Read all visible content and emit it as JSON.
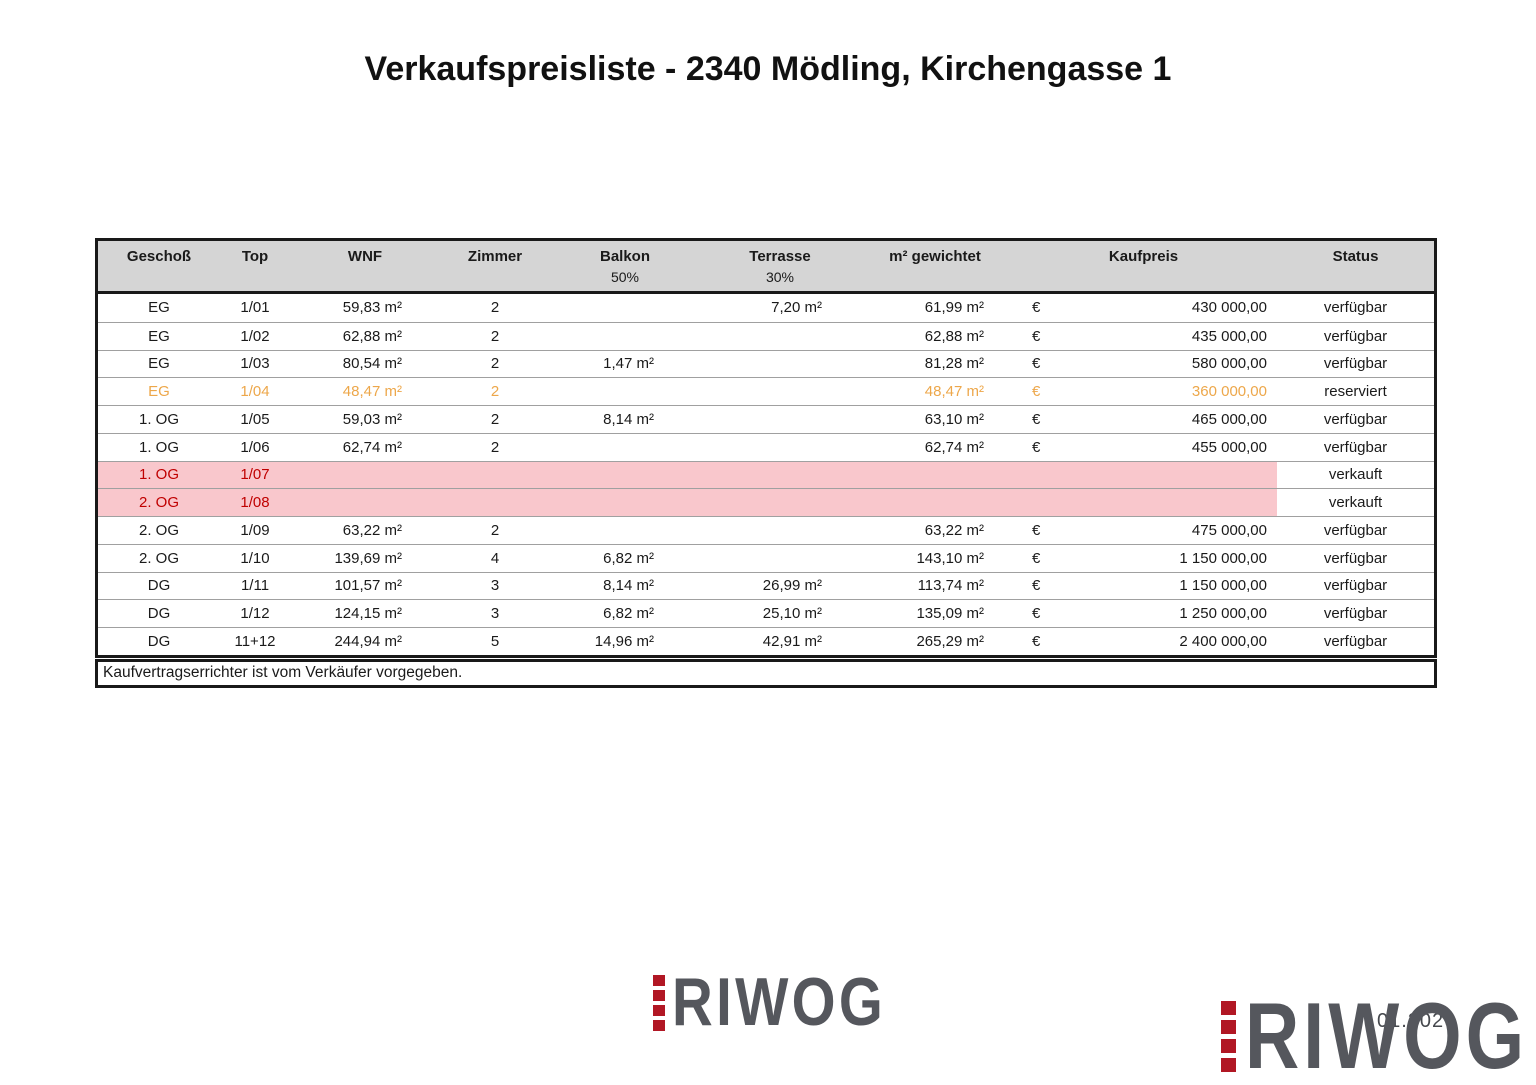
{
  "title": "Verkaufspreisliste - 2340 Mödling, Kirchengasse 1",
  "table": {
    "headers": {
      "geschoss": "Geschoß",
      "top": "Top",
      "wnf": "WNF",
      "zimmer": "Zimmer",
      "balkon": "Balkon",
      "balkon_sub": "50%",
      "terrasse": "Terrasse",
      "terrasse_sub": "30%",
      "gewichtet": "m² gewichtet",
      "kaufpreis": "Kaufpreis",
      "status": "Status"
    },
    "rows": [
      {
        "geschoss": "EG",
        "top": "1/01",
        "wnf": "59,83 m²",
        "zimmer": "2",
        "balkon": "",
        "terrasse": "7,20 m²",
        "gewichtet": "61,99 m²",
        "euro": "€",
        "kaufpreis": "430 000,00",
        "status": "verfügbar",
        "style": "normal"
      },
      {
        "geschoss": "EG",
        "top": "1/02",
        "wnf": "62,88 m²",
        "zimmer": "2",
        "balkon": "",
        "terrasse": "",
        "gewichtet": "62,88 m²",
        "euro": "€",
        "kaufpreis": "435 000,00",
        "status": "verfügbar",
        "style": "normal"
      },
      {
        "geschoss": "EG",
        "top": "1/03",
        "wnf": "80,54 m²",
        "zimmer": "2",
        "balkon": "1,47 m²",
        "terrasse": "",
        "gewichtet": "81,28 m²",
        "euro": "€",
        "kaufpreis": "580 000,00",
        "status": "verfügbar",
        "style": "normal"
      },
      {
        "geschoss": "EG",
        "top": "1/04",
        "wnf": "48,47 m²",
        "zimmer": "2",
        "balkon": "",
        "terrasse": "",
        "gewichtet": "48,47 m²",
        "euro": "€",
        "kaufpreis": "360 000,00",
        "status": "reserviert",
        "style": "reserved"
      },
      {
        "geschoss": "1. OG",
        "top": "1/05",
        "wnf": "59,03 m²",
        "zimmer": "2",
        "balkon": "8,14 m²",
        "terrasse": "",
        "gewichtet": "63,10 m²",
        "euro": "€",
        "kaufpreis": "465 000,00",
        "status": "verfügbar",
        "style": "normal"
      },
      {
        "geschoss": "1. OG",
        "top": "1/06",
        "wnf": "62,74 m²",
        "zimmer": "2",
        "balkon": "",
        "terrasse": "",
        "gewichtet": "62,74 m²",
        "euro": "€",
        "kaufpreis": "455 000,00",
        "status": "verfügbar",
        "style": "normal"
      },
      {
        "geschoss": "1. OG",
        "top": "1/07",
        "wnf": "",
        "zimmer": "",
        "balkon": "",
        "terrasse": "",
        "gewichtet": "",
        "euro": "",
        "kaufpreis": "",
        "status": "verkauft",
        "style": "sold"
      },
      {
        "geschoss": "2. OG",
        "top": "1/08",
        "wnf": "",
        "zimmer": "",
        "balkon": "",
        "terrasse": "",
        "gewichtet": "",
        "euro": "",
        "kaufpreis": "",
        "status": "verkauft",
        "style": "sold"
      },
      {
        "geschoss": "2. OG",
        "top": "1/09",
        "wnf": "63,22 m²",
        "zimmer": "2",
        "balkon": "",
        "terrasse": "",
        "gewichtet": "63,22 m²",
        "euro": "€",
        "kaufpreis": "475 000,00",
        "status": "verfügbar",
        "style": "normal"
      },
      {
        "geschoss": "2. OG",
        "top": "1/10",
        "wnf": "139,69 m²",
        "zimmer": "4",
        "balkon": "6,82 m²",
        "terrasse": "",
        "gewichtet": "143,10 m²",
        "euro": "€",
        "kaufpreis": "1 150 000,00",
        "status": "verfügbar",
        "style": "normal"
      },
      {
        "geschoss": "DG",
        "top": "1/11",
        "wnf": "101,57 m²",
        "zimmer": "3",
        "balkon": "8,14 m²",
        "terrasse": "26,99 m²",
        "gewichtet": "113,74 m²",
        "euro": "€",
        "kaufpreis": "1 150 000,00",
        "status": "verfügbar",
        "style": "normal"
      },
      {
        "geschoss": "DG",
        "top": "1/12",
        "wnf": "124,15 m²",
        "zimmer": "3",
        "balkon": "6,82 m²",
        "terrasse": "25,10 m²",
        "gewichtet": "135,09 m²",
        "euro": "€",
        "kaufpreis": "1 250 000,00",
        "status": "verfügbar",
        "style": "normal"
      },
      {
        "geschoss": "DG",
        "top": "11+12",
        "wnf": "244,94 m²",
        "zimmer": "5",
        "balkon": "14,96 m²",
        "terrasse": "42,91 m²",
        "gewichtet": "265,29 m²",
        "euro": "€",
        "kaufpreis": "2 400 000,00",
        "status": "verfügbar",
        "style": "normal"
      }
    ],
    "footnote": "Kaufvertragserrichter ist vom Verkäufer vorgegeben."
  },
  "logo": {
    "text": "RIWOG"
  },
  "watermark_date": "01.2026",
  "colors": {
    "header_bg": "#d5d5d5",
    "border_dark": "#191919",
    "row_line": "#a0a0a0",
    "sold_bg": "#f9c7cc",
    "sold_text": "#c00000",
    "reserved_text": "#eda74a",
    "logo_gray": "#55575d",
    "logo_red": "#b11724"
  }
}
